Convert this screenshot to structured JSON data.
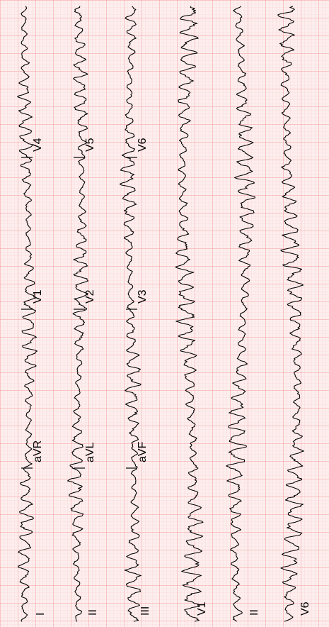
{
  "chart_data": {
    "type": "line",
    "title": "",
    "xlabel": "",
    "ylabel": "",
    "grid": true,
    "orientation": "rotated-90",
    "colors": {
      "grid_major": "#f29a9a",
      "grid_minor": "#f8cfcf",
      "background": "#fdeeee",
      "trace": "#000000"
    },
    "rows": [
      {
        "labels": [
          "I",
          "aVR",
          "V1",
          "V4"
        ],
        "rhythm": "fine"
      },
      {
        "labels": [
          "II",
          "aVL",
          "V2",
          "V5"
        ],
        "rhythm": "fine"
      },
      {
        "labels": [
          "III",
          "aVF",
          "V3",
          "V6"
        ],
        "rhythm": "fine"
      },
      {
        "labels": [
          "V1"
        ],
        "rhythm": "coarse"
      },
      {
        "labels": [
          "II"
        ],
        "rhythm": "coarse"
      },
      {
        "labels": [
          "V6"
        ],
        "rhythm": "coarse"
      }
    ]
  }
}
